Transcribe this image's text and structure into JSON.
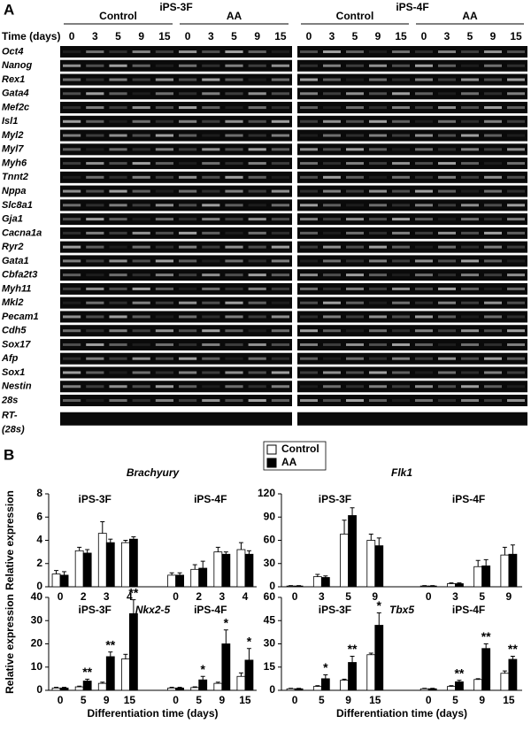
{
  "panel_a": {
    "label": "A",
    "lines": [
      {
        "name": "iPS-3F",
        "conditions": [
          "Control",
          "AA"
        ]
      },
      {
        "name": "iPS-4F",
        "conditions": [
          "Control",
          "AA"
        ]
      }
    ],
    "time_label": "Time (days)",
    "days": [
      0,
      3,
      5,
      9,
      15
    ],
    "genes": [
      "Oct4",
      "Nanog",
      "Rex1",
      "Gata4",
      "Mef2c",
      "Isl1",
      "Myl2",
      "Myl7",
      "Myh6",
      "Tnnt2",
      "Nppa",
      "Slc8a1",
      "Gja1",
      "Cacna1a",
      "Ryr2",
      "Gata1",
      "Cbfa2t3",
      "Myh11",
      "Mkl2",
      "Pecam1",
      "Cdh5",
      "Sox17",
      "Afp",
      "Sox1",
      "Nestin",
      "28s"
    ],
    "rt_label": [
      "RT-",
      "(28s)"
    ]
  },
  "panel_b": {
    "label": "B"
  },
  "chart_data": [
    {
      "type": "bar",
      "title": "Brachyury",
      "groups": [
        "iPS-3F",
        "iPS-4F"
      ],
      "categories": [
        0,
        2,
        3,
        4,
        0,
        2,
        3,
        4
      ],
      "ylabel": "Relative expression",
      "ylim": [
        0,
        8
      ],
      "yticks": [
        0,
        2,
        4,
        6,
        8
      ],
      "series": [
        {
          "name": "Control",
          "color": "#ffffff",
          "values": [
            1.1,
            3.1,
            4.6,
            3.8,
            1.0,
            1.5,
            3.0,
            3.2
          ],
          "errors": [
            0.3,
            0.3,
            1.0,
            0.2,
            0.2,
            0.4,
            0.4,
            0.6
          ]
        },
        {
          "name": "AA",
          "color": "#000000",
          "values": [
            1.0,
            2.9,
            3.8,
            4.1,
            1.0,
            1.6,
            2.8,
            2.8
          ],
          "errors": [
            0.3,
            0.3,
            0.3,
            0.2,
            0.2,
            0.6,
            0.2,
            0.3
          ]
        }
      ]
    },
    {
      "type": "bar",
      "title": "Flk1",
      "groups": [
        "iPS-3F",
        "iPS-4F"
      ],
      "categories": [
        0,
        3,
        5,
        9,
        0,
        3,
        5,
        9
      ],
      "ylim": [
        0,
        120
      ],
      "yticks": [
        0,
        30,
        60,
        90,
        120
      ],
      "series": [
        {
          "color": "#ffffff",
          "values": [
            1,
            13,
            68,
            60,
            1,
            4,
            26,
            41
          ],
          "errors": [
            0.5,
            3,
            18,
            8,
            0.5,
            1,
            8,
            10
          ]
        },
        {
          "color": "#000000",
          "values": [
            1,
            12,
            92,
            53,
            1,
            4,
            27,
            42
          ],
          "errors": [
            0.5,
            2,
            10,
            10,
            0.5,
            1,
            8,
            12
          ]
        }
      ]
    },
    {
      "type": "bar",
      "title": "Nkx2-5",
      "groups": [
        "iPS-3F",
        "iPS-4F"
      ],
      "categories": [
        0,
        5,
        9,
        15,
        0,
        5,
        9,
        15
      ],
      "ylabel": "Relative expression",
      "xlabel": "Differentiation time (days)",
      "ylim": [
        0,
        40
      ],
      "yticks": [
        0,
        10,
        20,
        30,
        40
      ],
      "series": [
        {
          "color": "#ffffff",
          "values": [
            1,
            1.5,
            3,
            13.5,
            1,
            1.2,
            3,
            6
          ],
          "errors": [
            0.3,
            0.3,
            0.5,
            2,
            0.3,
            0.3,
            0.5,
            1.5
          ]
        },
        {
          "color": "#000000",
          "values": [
            1,
            4,
            14.5,
            33,
            1,
            4.5,
            20,
            13
          ],
          "errors": [
            0.3,
            0.8,
            2,
            6,
            0.3,
            1.5,
            6,
            5
          ],
          "annotations": [
            null,
            "**",
            "**",
            "**",
            null,
            "*",
            "*",
            "*"
          ]
        }
      ]
    },
    {
      "type": "bar",
      "title": "Tbx5",
      "groups": [
        "iPS-3F",
        "iPS-4F"
      ],
      "categories": [
        0,
        5,
        9,
        15,
        0,
        5,
        9,
        15
      ],
      "xlabel": "Differentiation time (days)",
      "ylim": [
        0,
        60
      ],
      "yticks": [
        0,
        15,
        30,
        45,
        60
      ],
      "series": [
        {
          "color": "#ffffff",
          "values": [
            1,
            2.5,
            6.5,
            23,
            1,
            2.5,
            7,
            11
          ],
          "errors": [
            0.3,
            0.5,
            0.7,
            1,
            0.3,
            0.5,
            0.5,
            1.5
          ]
        },
        {
          "color": "#000000",
          "values": [
            1,
            7.5,
            18,
            42,
            1,
            5.5,
            27,
            20
          ],
          "errors": [
            0.3,
            2.5,
            4,
            8,
            0.3,
            1,
            3,
            2
          ],
          "annotations": [
            null,
            "*",
            "**",
            "*",
            null,
            "**",
            "**",
            "**"
          ]
        }
      ]
    }
  ]
}
